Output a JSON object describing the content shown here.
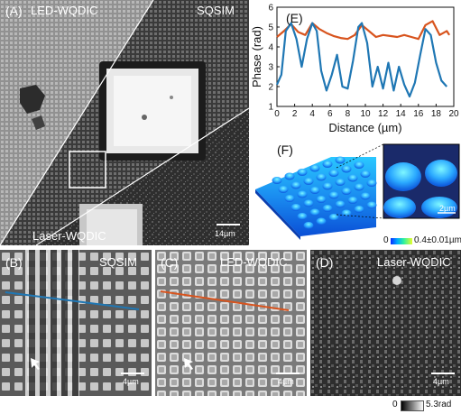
{
  "panel_a": {
    "label": "(A)",
    "region_led": "LED-WQDIC",
    "region_sqsim": "SQSIM",
    "region_laser": "Laser-WQDIC",
    "scalebar": "14µm"
  },
  "panel_b": {
    "label": "(B)",
    "title": "SQSIM",
    "scalebar": "4µm"
  },
  "panel_c": {
    "label": "(C)",
    "title": "LED-WQDIC",
    "scalebar": "4µm"
  },
  "panel_d": {
    "label": "(D)",
    "title": "Laser-WQDIC",
    "scalebar": "4µm"
  },
  "panel_f": {
    "label": "(F)",
    "inset_scalebar": "2µm",
    "colorbar_min": "0",
    "colorbar_max": "0.4±0.01µm"
  },
  "colorbar_phase": {
    "min": "0",
    "max": "5.3rad"
  },
  "colors": {
    "sqsim_line": "#1f77b4",
    "led_line": "#d8541e"
  },
  "chart_data": {
    "type": "line",
    "label": "(E)",
    "xlabel": "Distance (µm)",
    "ylabel": "Phase (rad)",
    "xlim": [
      0,
      20
    ],
    "ylim": [
      1,
      6
    ],
    "xticks": [
      "0",
      "2",
      "4",
      "6",
      "8",
      "10",
      "12",
      "14",
      "16",
      "18",
      "20"
    ],
    "yticks": [
      "1",
      "2",
      "3",
      "4",
      "5",
      "6"
    ],
    "series": [
      {
        "color": "#d8541e",
        "x": [
          0,
          0.8,
          1.6,
          2.4,
          3.2,
          4.0,
          4.8,
          5.6,
          6.4,
          7.2,
          8.0,
          8.8,
          9.6,
          10.4,
          11.2,
          12.0,
          12.8,
          13.6,
          14.4,
          15.2,
          16.0,
          16.8,
          17.6,
          18.4,
          19.2,
          19.5
        ],
        "y": [
          4.5,
          4.8,
          5.15,
          4.75,
          4.6,
          5.2,
          4.9,
          4.7,
          4.55,
          4.45,
          4.4,
          4.6,
          5.1,
          4.8,
          4.5,
          4.6,
          4.55,
          4.5,
          4.6,
          4.5,
          4.4,
          5.1,
          5.3,
          4.6,
          4.8,
          4.6
        ]
      },
      {
        "color": "#1f77b4",
        "x": [
          0,
          0.5,
          1.0,
          1.6,
          2.2,
          2.8,
          3.4,
          4.0,
          4.5,
          5.0,
          5.6,
          6.2,
          6.8,
          7.4,
          8.0,
          8.6,
          9.2,
          9.6,
          10.2,
          10.8,
          11.4,
          12.0,
          12.6,
          13.2,
          13.8,
          14.4,
          15.0,
          15.6,
          16.2,
          16.8,
          17.4,
          18.0,
          18.6,
          19.2
        ],
        "y": [
          2.1,
          2.6,
          4.8,
          5.2,
          4.4,
          3.0,
          4.4,
          5.2,
          4.8,
          2.8,
          1.8,
          2.6,
          3.6,
          2.0,
          1.9,
          3.3,
          5.0,
          5.2,
          4.2,
          2.0,
          3.0,
          1.9,
          3.2,
          1.8,
          3.0,
          2.1,
          1.5,
          2.2,
          3.6,
          4.9,
          4.6,
          3.2,
          2.3,
          2.0
        ]
      }
    ]
  }
}
